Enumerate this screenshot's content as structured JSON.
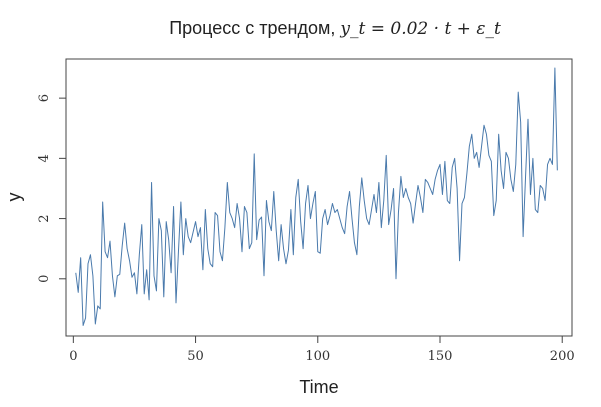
{
  "chart_data": {
    "type": "line",
    "title": "Процесс с трендом, ",
    "title_formula": "y_t = 0.02 · t + ε_t",
    "xlabel": "Time",
    "ylabel": "y",
    "xlim": [
      -3,
      204
    ],
    "ylim": [
      -1.9,
      7.3
    ],
    "x_ticks": [
      0,
      50,
      100,
      150,
      200
    ],
    "y_ticks": [
      0,
      2,
      4,
      6
    ],
    "grid": false,
    "line_color": "#4a7aac",
    "series": [
      {
        "x_start": 1,
        "x_step": 1,
        "values": [
          0.2,
          -0.45,
          0.7,
          -1.55,
          -1.3,
          0.5,
          0.8,
          0.1,
          -1.5,
          -0.9,
          -1.0,
          2.55,
          0.9,
          0.7,
          1.25,
          0.1,
          -0.6,
          0.1,
          0.15,
          1.1,
          1.85,
          1.0,
          0.6,
          0.05,
          0.2,
          -0.5,
          0.8,
          1.8,
          -0.5,
          0.3,
          -0.7,
          3.2,
          0.1,
          -0.4,
          2.0,
          1.6,
          -0.6,
          1.9,
          1.3,
          0.2,
          2.4,
          -0.8,
          0.9,
          2.55,
          0.8,
          2.0,
          1.4,
          1.2,
          1.55,
          1.9,
          1.4,
          1.7,
          0.3,
          2.3,
          1.0,
          0.5,
          0.4,
          2.2,
          2.1,
          0.9,
          0.6,
          1.7,
          3.2,
          2.2,
          2.0,
          1.7,
          2.5,
          2.0,
          0.9,
          2.4,
          2.2,
          1.0,
          1.2,
          4.15,
          1.3,
          1.95,
          2.05,
          0.1,
          2.6,
          1.9,
          1.6,
          2.9,
          1.6,
          0.6,
          1.8,
          1.0,
          0.5,
          0.95,
          2.3,
          0.8,
          2.7,
          3.3,
          1.9,
          1.0,
          2.5,
          3.1,
          2.0,
          2.5,
          2.9,
          0.9,
          0.85,
          2.0,
          2.3,
          1.8,
          2.1,
          2.5,
          2.2,
          2.3,
          2.0,
          1.7,
          1.5,
          2.4,
          2.9,
          2.0,
          1.2,
          0.8,
          2.4,
          3.35,
          2.6,
          2.0,
          1.8,
          2.3,
          2.8,
          2.2,
          3.2,
          1.7,
          2.6,
          4.1,
          1.8,
          2.3,
          3.0,
          0.0,
          2.2,
          3.4,
          2.7,
          3.0,
          2.7,
          2.5,
          1.85,
          2.5,
          3.1,
          2.7,
          2.2,
          3.3,
          3.2,
          3.0,
          2.8,
          3.3,
          3.6,
          3.8,
          2.8,
          3.9,
          2.6,
          2.5,
          3.7,
          4.0,
          3.0,
          0.6,
          2.5,
          2.7,
          3.5,
          4.4,
          4.8,
          4.0,
          4.2,
          3.7,
          4.4,
          5.1,
          4.8,
          4.1,
          3.9,
          2.1,
          2.6,
          4.8,
          3.6,
          3.0,
          4.2,
          4.0,
          3.3,
          2.9,
          3.8,
          6.2,
          5.2,
          1.4,
          3.4,
          5.3,
          2.8,
          4.0,
          2.3,
          2.2,
          3.1,
          3.0,
          2.6,
          3.8,
          4.0,
          3.8,
          7.0,
          3.6
        ]
      }
    ]
  }
}
